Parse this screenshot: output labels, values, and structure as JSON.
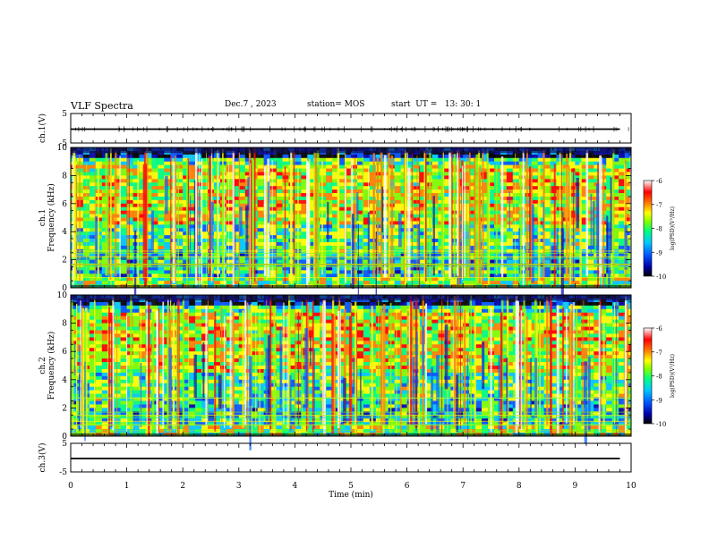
{
  "header": {
    "title": "VLF Spectra",
    "date": "Dec.7 , 2023",
    "station": "station= MOS",
    "start": "start  UT =   13: 30: 1"
  },
  "chart_data": [
    {
      "type": "line",
      "ylabel": "ch.1(V)",
      "y_ticks": [
        "5",
        "-5"
      ],
      "ylim": [
        -5,
        5
      ],
      "x": [
        0,
        9.8
      ],
      "values": [
        0,
        0
      ]
    },
    {
      "type": "heatmap",
      "ylabel": "ch.1\nFrequency  (kHz)",
      "y_ticks": [
        "0",
        "2",
        "4",
        "6",
        "8",
        "10"
      ],
      "xlim": [
        0,
        9.8
      ],
      "ylim": [
        0,
        10
      ],
      "colorbar": {
        "label": "log(PSD)(V²/Hz)",
        "ticks": [
          "-6",
          "-7",
          "-8",
          "-9",
          "-10"
        ],
        "range": [
          -10,
          -6
        ],
        "colors": [
          "#000000",
          "#0000aa",
          "#0055ff",
          "#00c8ff",
          "#00ff80",
          "#80ff00",
          "#ffff00",
          "#ff8000",
          "#ff0000",
          "#ffffff"
        ]
      }
    },
    {
      "type": "heatmap",
      "ylabel": "ch.2\nFrequency  (kHz)",
      "y_ticks": [
        "0",
        "2",
        "4",
        "6",
        "8",
        "10"
      ],
      "xlim": [
        0,
        9.8
      ],
      "ylim": [
        0,
        10
      ],
      "colorbar": {
        "label": "log(PSD)(V²/Hz)",
        "ticks": [
          "-6",
          "-7",
          "-8",
          "-9",
          "-10"
        ],
        "range": [
          -10,
          -6
        ]
      }
    },
    {
      "type": "line",
      "ylabel": "ch.3(V)",
      "y_ticks": [
        "5",
        "-5"
      ],
      "ylim": [
        -5,
        5
      ],
      "x": [
        0,
        9.8
      ],
      "values": [
        0,
        0
      ],
      "xlabel": "Time  (min)",
      "x_ticks": [
        "0",
        "1",
        "2",
        "3",
        "4",
        "5",
        "6",
        "7",
        "8",
        "9",
        "10"
      ],
      "xlim": [
        0,
        10
      ]
    }
  ]
}
